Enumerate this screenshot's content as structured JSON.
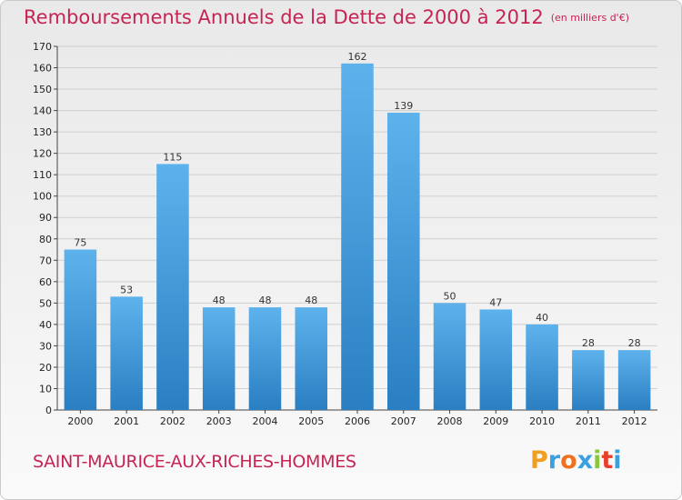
{
  "title": "Remboursements Annuels de la Dette de 2000 à 2012",
  "unit_note": "(en milliers d'€)",
  "commune": "SAINT-MAURICE-AUX-RICHES-HOMMES",
  "logo": {
    "letters": [
      "P",
      "r",
      "o",
      "x",
      "i",
      "t",
      "i"
    ],
    "colors": [
      "#f0a020",
      "#3aa0e0",
      "#f07020",
      "#3aa0e0",
      "#8cc63f",
      "#e8402a",
      "#3aa0e0"
    ]
  },
  "colors": {
    "title": "#c62452",
    "bar_top": "#5eb2ec",
    "bar_bottom": "#2a7fc2",
    "grid": "#cfcfcf"
  },
  "chart_data": {
    "type": "bar",
    "categories": [
      "2000",
      "2001",
      "2002",
      "2003",
      "2004",
      "2005",
      "2006",
      "2007",
      "2008",
      "2009",
      "2010",
      "2011",
      "2012"
    ],
    "values": [
      75,
      53,
      115,
      48,
      48,
      48,
      162,
      139,
      50,
      47,
      40,
      28,
      28
    ],
    "ylim": [
      0,
      170
    ],
    "ytick_step": 10,
    "grid": true,
    "data_labels": true
  }
}
